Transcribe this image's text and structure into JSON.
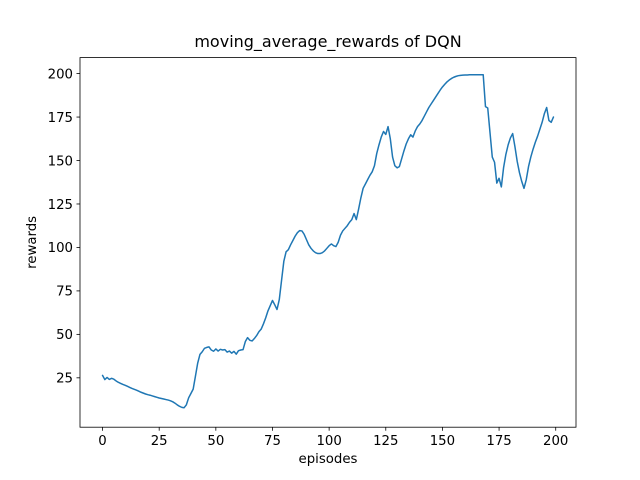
{
  "figure": {
    "background": "#ffffff",
    "text_color": "#000000"
  },
  "chart_data": {
    "type": "line",
    "title": "moving_average_rewards of DQN",
    "xlabel": "episodes",
    "ylabel": "rewards",
    "x_tick_labels": [
      0,
      25,
      50,
      75,
      100,
      125,
      150,
      175,
      200
    ],
    "y_tick_labels": [
      25,
      50,
      75,
      100,
      125,
      150,
      175,
      200
    ],
    "xlim": [
      -9.95,
      208.95
    ],
    "ylim": [
      -3.4,
      209.2
    ],
    "grid": false,
    "legend": "none",
    "series": [
      {
        "name": "moving_average_rewards",
        "color": "#1f77b4",
        "x_start": 0,
        "x_step": 1,
        "y": [
          26.4,
          24.0,
          25.2,
          24.1,
          24.7,
          24.2,
          23.2,
          22.4,
          21.8,
          21.2,
          20.7,
          20.1,
          19.5,
          18.9,
          18.4,
          17.9,
          17.3,
          16.7,
          16.2,
          15.7,
          15.3,
          15.0,
          14.6,
          14.2,
          13.8,
          13.4,
          13.1,
          12.8,
          12.5,
          12.2,
          11.8,
          11.2,
          10.4,
          9.4,
          8.6,
          8.0,
          7.8,
          9.5,
          13.5,
          16.0,
          18.5,
          26.0,
          33.5,
          38.5,
          40.0,
          42.0,
          42.5,
          42.8,
          41.0,
          40.3,
          41.6,
          40.4,
          41.4,
          41.0,
          41.2,
          39.8,
          40.4,
          39.2,
          40.2,
          38.6,
          40.6,
          41.0,
          41.2,
          45.8,
          48.1,
          46.6,
          46.2,
          47.6,
          49.3,
          51.5,
          53.0,
          56.0,
          59.5,
          63.5,
          66.5,
          69.5,
          67.0,
          64.3,
          70.0,
          81.0,
          92.0,
          97.5,
          98.7,
          101.5,
          104.0,
          106.5,
          108.5,
          109.7,
          109.5,
          107.5,
          104.5,
          101.5,
          99.5,
          98.0,
          97.0,
          96.5,
          96.5,
          97.0,
          98.0,
          99.5,
          101.0,
          102.0,
          101.0,
          100.5,
          103.0,
          107.0,
          109.5,
          111.0,
          112.5,
          114.5,
          116.0,
          119.5,
          116.0,
          122.0,
          128.5,
          134.0,
          136.5,
          139.0,
          141.5,
          143.5,
          147.0,
          154.0,
          159.0,
          163.5,
          166.7,
          165.0,
          169.5,
          162.5,
          152.0,
          147.0,
          145.8,
          146.5,
          151.0,
          155.5,
          159.5,
          162.5,
          164.8,
          163.5,
          167.0,
          169.5,
          171.0,
          173.0,
          175.5,
          178.0,
          180.5,
          182.5,
          184.5,
          186.5,
          188.5,
          190.5,
          192.3,
          193.8,
          195.2,
          196.3,
          197.2,
          197.9,
          198.4,
          198.8,
          199.0,
          199.1,
          199.2,
          199.2,
          199.3,
          199.3,
          199.3,
          199.3,
          199.3,
          199.3,
          199.3,
          181.0,
          180.2,
          166.0,
          152.0,
          149.0,
          137.0,
          139.8,
          134.8,
          146.0,
          153.5,
          159.0,
          163.0,
          165.5,
          158.0,
          149.5,
          143.0,
          138.0,
          134.0,
          139.0,
          146.5,
          152.0,
          156.5,
          160.5,
          164.0,
          168.0,
          172.0,
          177.0,
          180.5,
          173.0,
          172.0,
          175.0
        ]
      }
    ]
  }
}
